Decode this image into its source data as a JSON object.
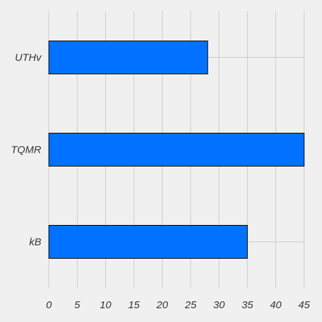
{
  "chart_data": {
    "type": "bar",
    "orientation": "horizontal",
    "categories": [
      "UTHv",
      "TQMR",
      "kB"
    ],
    "values": [
      28,
      45,
      35
    ],
    "xlim": [
      0,
      45
    ],
    "xticks": [
      0,
      5,
      10,
      15,
      20,
      25,
      30,
      35,
      40,
      45
    ],
    "title": "",
    "xlabel": "",
    "ylabel": "",
    "grid": true,
    "legend": "none",
    "bar_color": "#0072ff",
    "background": "#f0f0f0",
    "grid_color": "#cbcbcb"
  }
}
